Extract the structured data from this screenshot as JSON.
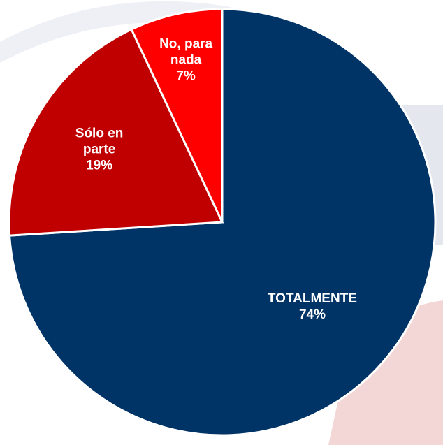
{
  "chart_data": {
    "type": "pie",
    "categories": [
      "TOTALMENTE",
      "Sólo en parte",
      "No, para nada"
    ],
    "values": [
      74,
      19,
      7
    ],
    "value_labels": [
      "74%",
      "19%",
      "7%"
    ],
    "colors": [
      "#003366",
      "#c00000",
      "#ff0000"
    ]
  }
}
